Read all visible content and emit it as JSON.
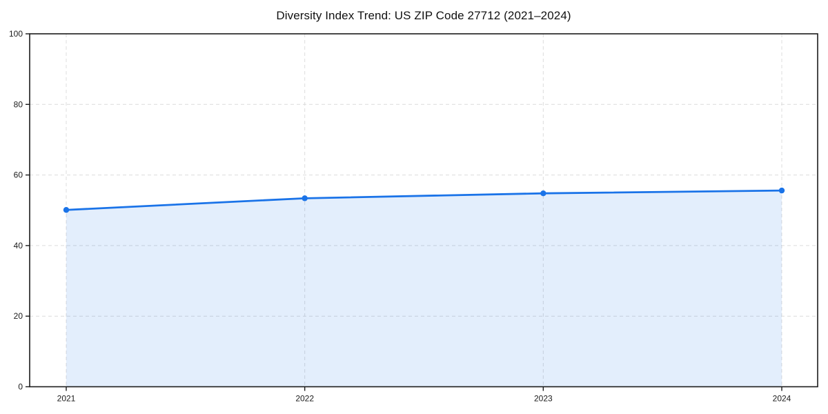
{
  "chart_data": {
    "type": "line",
    "title": "Diversity Index Trend: US ZIP Code 27712 (2021–2024)",
    "categories": [
      "2021",
      "2022",
      "2023",
      "2024"
    ],
    "series": [
      {
        "name": "Diversity Index",
        "values": [
          50.1,
          53.4,
          54.8,
          55.6
        ]
      }
    ],
    "xlabel": "",
    "ylabel": "",
    "ylim": [
      0,
      100
    ],
    "yticks": [
      0,
      20,
      40,
      60,
      80,
      100
    ],
    "grid": "dashed",
    "legend": "none",
    "area_fill": true,
    "marker": "circle",
    "colors": {
      "line": "#1a73e8",
      "marker": "#1a73e8",
      "fill": "#1a73e8",
      "fill_opacity": 0.12,
      "grid": "#dcdcdc",
      "axis": "#1a1a1a",
      "tick_text": "#1a1a1a",
      "title_text": "#111111",
      "background": "#ffffff"
    }
  }
}
